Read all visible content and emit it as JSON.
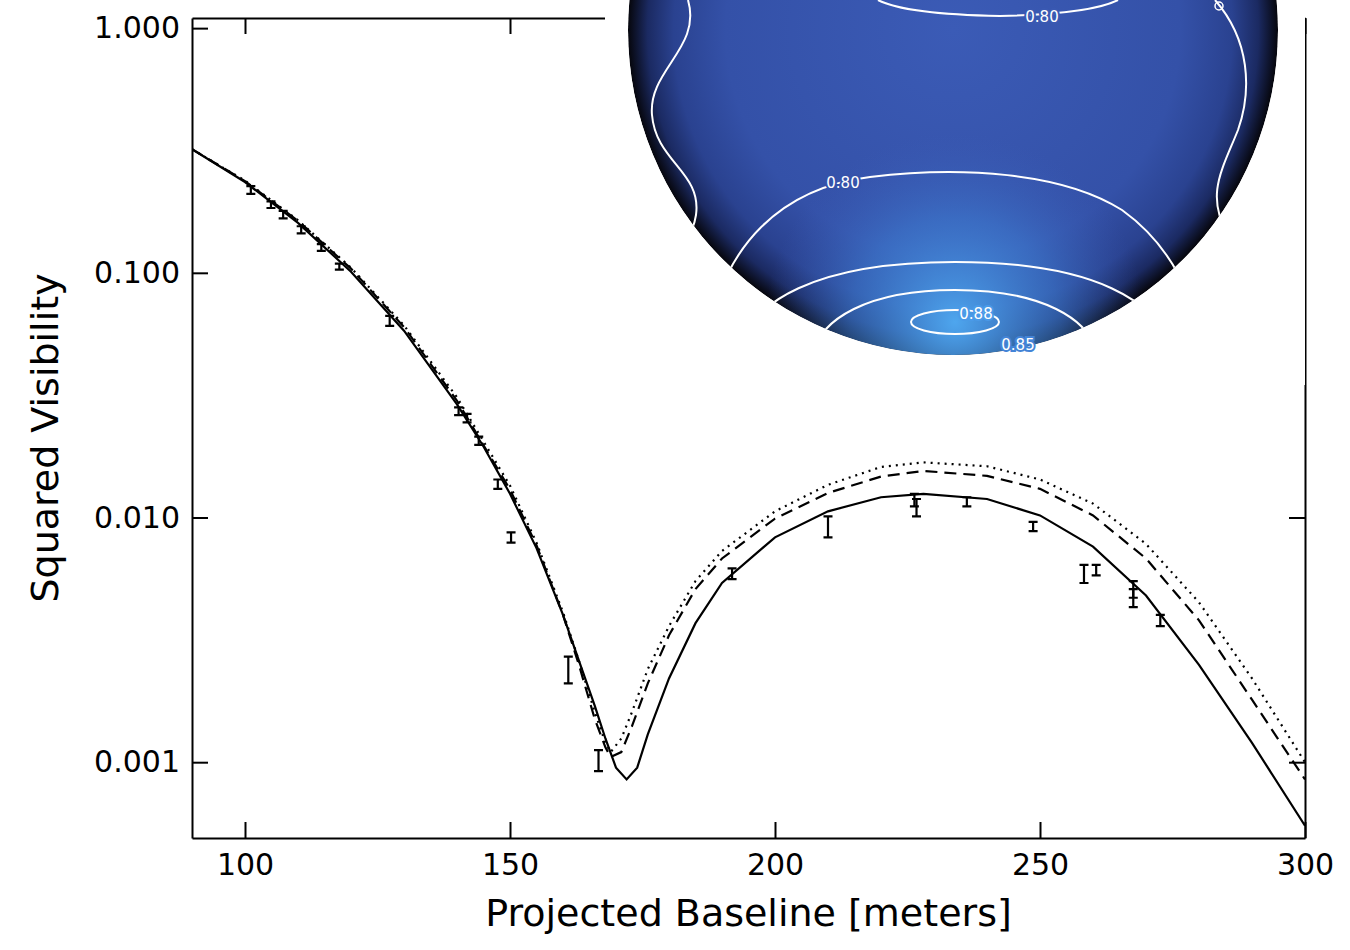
{
  "chart_data": {
    "type": "line",
    "x_label": "Projected Baseline [meters]",
    "y_label": "Squared Visibility",
    "log": "y",
    "grid": false,
    "xlim": [
      90,
      300
    ],
    "ylim": [
      0.00049,
      1.1
    ],
    "xticks": [
      100,
      150,
      200,
      250,
      300
    ],
    "yticks": [
      {
        "value": 1,
        "label": "1.000"
      },
      {
        "value": 0.1,
        "label": "0.100"
      },
      {
        "value": 0.01,
        "label": "0.010"
      },
      0.001
    ],
    "series": [
      {
        "type": "line",
        "line_style": "solid",
        "color": "#000000",
        "x": [
          90,
          100,
          110,
          120,
          130,
          140,
          145,
          150,
          155,
          160,
          163,
          166,
          168,
          170,
          172,
          174,
          176,
          180,
          185,
          190,
          200,
          210,
          220,
          228,
          240,
          250,
          260,
          270,
          280,
          290,
          300
        ],
        "values": [
          0.32,
          0.235,
          0.16,
          0.101,
          0.058,
          0.029,
          0.0195,
          0.0125,
          0.0075,
          0.004,
          0.0026,
          0.0017,
          0.00125,
          0.00095,
          0.00085,
          0.00095,
          0.0013,
          0.0022,
          0.0037,
          0.0054,
          0.0083,
          0.0106,
          0.0121,
          0.0125,
          0.0119,
          0.0102,
          0.0076,
          0.0048,
          0.0025,
          0.0012,
          0.00055
        ]
      },
      {
        "type": "line",
        "line_style": "dashed",
        "color": "#000000",
        "x": [
          90,
          100,
          110,
          120,
          130,
          140,
          150,
          155,
          160,
          163,
          166,
          168,
          169,
          171,
          173,
          176,
          180,
          185,
          190,
          200,
          210,
          220,
          228,
          240,
          250,
          260,
          270,
          280,
          290,
          300
        ],
        "values": [
          0.32,
          0.237,
          0.163,
          0.104,
          0.06,
          0.03,
          0.013,
          0.0077,
          0.004,
          0.0025,
          0.0015,
          0.00115,
          0.00105,
          0.0011,
          0.0014,
          0.0021,
          0.0033,
          0.0051,
          0.0068,
          0.0099,
          0.0126,
          0.0147,
          0.0155,
          0.0148,
          0.0131,
          0.0102,
          0.0068,
          0.0038,
          0.0018,
          0.00085
        ]
      },
      {
        "type": "line",
        "line_style": "dotted",
        "color": "#000000",
        "x": [
          90,
          100,
          110,
          120,
          130,
          140,
          150,
          155,
          160,
          163,
          166,
          168,
          169,
          171,
          173,
          176,
          180,
          185,
          190,
          200,
          210,
          220,
          228,
          240,
          250,
          260,
          270,
          280,
          290,
          300
        ],
        "values": [
          0.32,
          0.238,
          0.164,
          0.105,
          0.061,
          0.031,
          0.0135,
          0.0079,
          0.0041,
          0.0026,
          0.0016,
          0.0012,
          0.0011,
          0.00125,
          0.0016,
          0.0024,
          0.0036,
          0.0055,
          0.0073,
          0.0106,
          0.0136,
          0.0161,
          0.0168,
          0.0162,
          0.0143,
          0.0114,
          0.0078,
          0.0045,
          0.0022,
          0.001
        ]
      },
      {
        "type": "scatter",
        "marker": "errorbar",
        "color": "#000000",
        "x": [
          101.1,
          104.9,
          107.2,
          110.6,
          114.4,
          117.8,
          127.3,
          140.3,
          141.9,
          144.1,
          147.7,
          150.2,
          161.0,
          166.7,
          191.9,
          210.0,
          226.3,
          226.7,
          236.2,
          248.7,
          258.3,
          260.6,
          267.6,
          267.6,
          272.7
        ],
        "values": [
          0.218,
          0.19,
          0.173,
          0.15,
          0.127,
          0.106,
          0.0637,
          0.0272,
          0.0255,
          0.0206,
          0.0137,
          0.0083,
          0.0024,
          0.00102,
          0.0059,
          0.0092,
          0.0118,
          0.011,
          0.0116,
          0.0092,
          0.0059,
          0.0061,
          0.0051,
          0.0047,
          0.0038
        ],
        "errors": [
          0.008,
          0.006,
          0.006,
          0.005,
          0.004,
          0.003,
          0.003,
          0.001,
          0.001,
          0.0008,
          0.0006,
          0.0004,
          0.0003,
          0.0001,
          0.0003,
          0.0009,
          0.0007,
          0.0009,
          0.0005,
          0.0004,
          0.0005,
          0.0003,
          0.0004,
          0.0004,
          0.0002
        ]
      }
    ],
    "contour_labels": [
      {
        "value": 0.8,
        "label": "0.80"
      },
      {
        "value": 0.8,
        "label": "0.80"
      },
      {
        "value": 0.88,
        "label": "0.88"
      },
      {
        "value": 0.85,
        "label": "0.85"
      }
    ]
  }
}
